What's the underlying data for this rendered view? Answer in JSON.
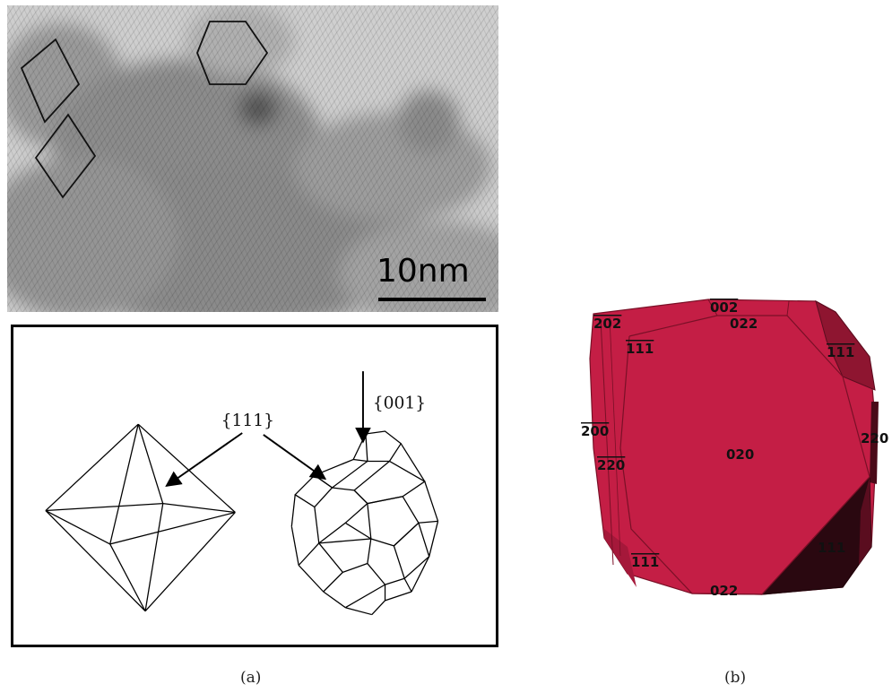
{
  "panel_a": {
    "scale_bar": "10nm",
    "family_111": "{111}",
    "family_001": "{001}",
    "caption": "(a)"
  },
  "panel_b": {
    "caption": "(b)",
    "facets": {
      "f1": "202",
      "f2": "002",
      "f3": "022",
      "f4": "111",
      "f5": "111",
      "f6": "200",
      "f7": "220",
      "f8": "020",
      "f9": "220",
      "f10": "111",
      "f11": "111",
      "f12": "022"
    },
    "colors": {
      "main": "#c41e45",
      "dark": "#8e1530",
      "darker": "#5a0d1f",
      "darkest": "#2a0810"
    }
  }
}
